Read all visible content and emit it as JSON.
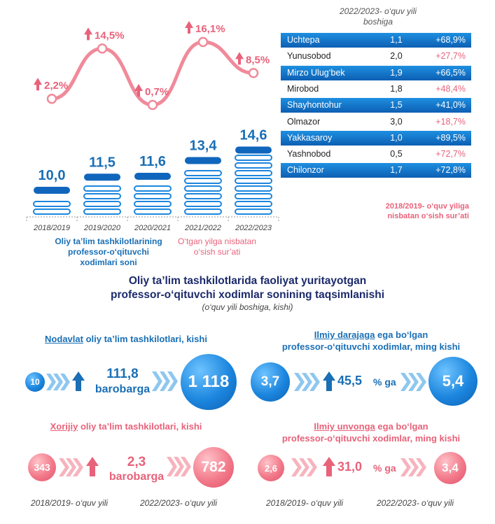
{
  "chart_data": {
    "type": "bar",
    "categories": [
      "2018/2019",
      "2019/2020",
      "2020/2021",
      "2021/2022",
      "2022/2023"
    ],
    "values": [
      10.0,
      11.5,
      11.6,
      13.4,
      14.6
    ],
    "value_labels": [
      "10,0",
      "11,5",
      "11,6",
      "13,4",
      "14,6"
    ],
    "growth": [
      2.2,
      14.5,
      0.7,
      16.1,
      8.5
    ],
    "growth_labels": [
      "2,2%",
      "14,5%",
      "0,7%",
      "16,1%",
      "8,5%"
    ],
    "series": [
      {
        "name": "Oliy ta’lim tashkilotlarining professor-o‘qituvchi xodimlari soni",
        "values": [
          10.0,
          11.5,
          11.6,
          13.4,
          14.6
        ]
      },
      {
        "name": "O‘tgan yilga nisbatan o‘sish sur’ati",
        "values": [
          2.2,
          14.5,
          0.7,
          16.1,
          8.5
        ]
      }
    ],
    "title": "Oliy ta’lim tashkilotlarida faoliyat yuritayotgan professor-o‘qituvchi xodimlar sonining taqsimlanishi",
    "subtitle": "(o‘quv yili boshiga, kishi)"
  },
  "legend": {
    "bars_label_1": "Oliy ta’lim tashkilotlarining",
    "bars_label_2": "professor-o‘qituvchi",
    "bars_label_3": "xodimlari soni",
    "line_label_1": "O‘tgan yilga nisbatan",
    "line_label_2": "o‘sish sur’ati"
  },
  "table": {
    "header_1": "2022/2023- o‘quv yili",
    "header_2": "boshiga",
    "rows": [
      {
        "district": "Uchtepa",
        "value": "1,1",
        "growth": "+68,9%"
      },
      {
        "district": "Yunusobod",
        "value": "2,0",
        "growth": "+27,7%"
      },
      {
        "district": "Mirzo Ulug‘bek",
        "value": "1,9",
        "growth": "+66,5%"
      },
      {
        "district": "Mirobod",
        "value": "1,8",
        "growth": "+48,4%"
      },
      {
        "district": "Shayhontohur",
        "value": "1,5",
        "growth": "+41,0%"
      },
      {
        "district": "Olmazor",
        "value": "3,0",
        "growth": "+18,7%"
      },
      {
        "district": "Yakkasaroy",
        "value": "1,0",
        "growth": "+89,5%"
      },
      {
        "district": "Yashnobod",
        "value": "0,5",
        "growth": "+72,7%"
      },
      {
        "district": "Chilonzor",
        "value": "1,7",
        "growth": "+72,8%"
      }
    ],
    "note_1": "2018/2019- o‘quv yiliga",
    "note_2": "nisbatan o‘sish sur’ati"
  },
  "main_title_1": "Oliy ta’lim tashkilotlarida faoliyat yuritayotgan",
  "main_title_2": "professor-o‘qituvchi xodimlar sonining taqsimlanishi",
  "main_subtitle": "(o‘quv yili boshiga, kishi)",
  "panels": {
    "nodavlat": {
      "title_u": "Nodavlat",
      "title_rest": " oliy ta’lim tashkilotlari, kishi",
      "from": "10",
      "mult": "111,8",
      "unit": "barobarga",
      "to": "1 118"
    },
    "ilmiy_daraja": {
      "title_u": "Ilmiy darajaga",
      "title_rest": " ega bo‘lgan",
      "title_2": "professor-o‘qituvchi xodimlar, ming kishi",
      "from": "3,7",
      "pct": "45,5",
      "unit": "% ga",
      "to": "5,4"
    },
    "xorijiy": {
      "title_u": "Xorijiy",
      "title_rest": " oliy ta’lim tashkilotlari, kishi",
      "from": "343",
      "mult": "2,3",
      "unit": "barobarga",
      "to": "782"
    },
    "ilmiy_unvon": {
      "title_u": "Ilmiy unvonga",
      "title_rest": " ega bo‘lgan",
      "title_2": "professor-o‘qituvchi xodimlar, ming kishi",
      "from": "2,6",
      "pct": "31,0",
      "unit": "% ga",
      "to": "3,4"
    }
  },
  "footer": {
    "left_from": "2018/2019- o‘quv yili",
    "left_to": "2022/2023- o‘quv yili",
    "right_from": "2018/2019- o‘quv yili",
    "right_to": "2022/2023- o‘quv yili"
  },
  "colors": {
    "blue": "#1a6fb5",
    "pink": "#e8627a",
    "navy": "#1b2a6b"
  }
}
